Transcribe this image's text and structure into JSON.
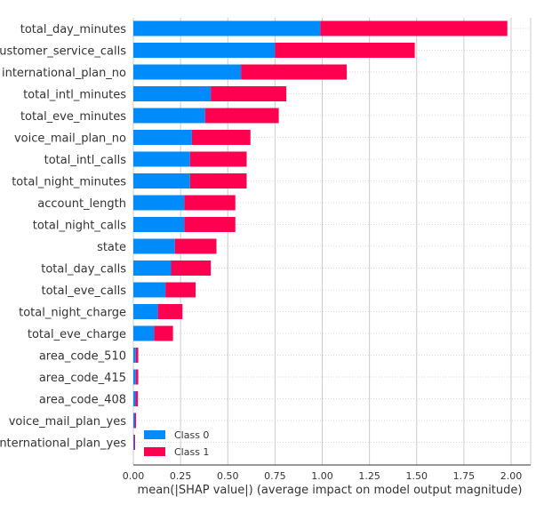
{
  "chart_data": {
    "type": "bar",
    "orientation": "horizontal",
    "stacked": true,
    "categories": [
      "total_day_minutes",
      "customer_service_calls",
      "international_plan_no",
      "total_intl_minutes",
      "total_eve_minutes",
      "voice_mail_plan_no",
      "total_intl_calls",
      "total_night_minutes",
      "account_length",
      "total_night_calls",
      "state",
      "total_day_calls",
      "total_eve_calls",
      "total_night_charge",
      "total_eve_charge",
      "area_code_510",
      "area_code_415",
      "area_code_408",
      "voice_mail_plan_yes",
      "international_plan_yes"
    ],
    "series": [
      {
        "name": "Class 0",
        "color": "#008bfb",
        "values": [
          0.99,
          0.75,
          0.57,
          0.41,
          0.38,
          0.31,
          0.3,
          0.3,
          0.27,
          0.27,
          0.22,
          0.2,
          0.17,
          0.13,
          0.11,
          0.013,
          0.013,
          0.012,
          0.007,
          0.004
        ]
      },
      {
        "name": "Class 1",
        "color": "#ff0051",
        "values": [
          0.99,
          0.74,
          0.56,
          0.4,
          0.39,
          0.31,
          0.3,
          0.3,
          0.27,
          0.27,
          0.22,
          0.21,
          0.16,
          0.13,
          0.1,
          0.013,
          0.013,
          0.012,
          0.007,
          0.004
        ]
      }
    ],
    "xlabel": "mean(|SHAP value|) (average impact on model output magnitude)",
    "xlim": [
      0,
      2.1
    ],
    "xticks": [
      0.0,
      0.25,
      0.5,
      0.75,
      1.0,
      1.25,
      1.5,
      1.75,
      2.0
    ],
    "xtick_labels": [
      "0.00",
      "0.25",
      "0.50",
      "0.75",
      "1.00",
      "1.25",
      "1.50",
      "1.75",
      "2.00"
    ],
    "grid": true,
    "legend_position": "bottom-left"
  }
}
